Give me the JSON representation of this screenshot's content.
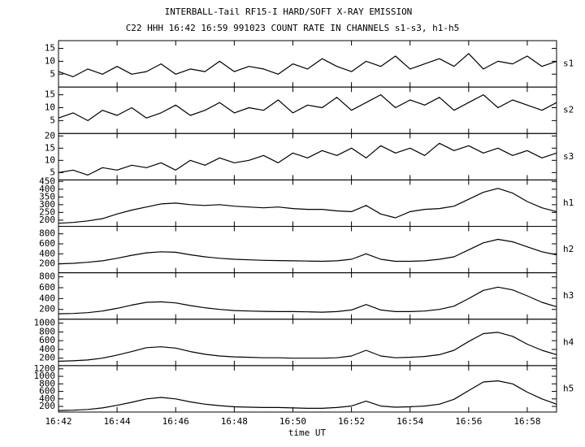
{
  "chart_data": {
    "type": "line",
    "title": "INTERBALL-Tail RF15-I HARD/SOFT X-RAY EMISSION",
    "subtitle": "C22 HHH 16:42 16:59 991023  COUNT RATE IN CHANNELS s1-s3, h1-h5",
    "xlabel": "time UT",
    "color": "#000000",
    "xlim": [
      "16:42",
      "16:59"
    ],
    "xticks": [
      "16:42",
      "16:44",
      "16:46",
      "16:48",
      "16:50",
      "16:52",
      "16:54",
      "16:56",
      "16:58"
    ],
    "x": [
      "16:42:00",
      "16:42:30",
      "16:43:00",
      "16:43:30",
      "16:44:00",
      "16:44:30",
      "16:45:00",
      "16:45:30",
      "16:46:00",
      "16:46:30",
      "16:47:00",
      "16:47:30",
      "16:48:00",
      "16:48:30",
      "16:49:00",
      "16:49:30",
      "16:50:00",
      "16:50:30",
      "16:51:00",
      "16:51:30",
      "16:52:00",
      "16:52:30",
      "16:53:00",
      "16:53:30",
      "16:54:00",
      "16:54:30",
      "16:55:00",
      "16:55:30",
      "16:56:00",
      "16:56:30",
      "16:57:00",
      "16:57:30",
      "16:58:00",
      "16:58:30",
      "16:59:00"
    ],
    "panels": [
      {
        "name": "s1",
        "ylim": [
          0,
          18
        ],
        "yticks": [
          5,
          10,
          15
        ],
        "values": [
          6,
          4,
          7,
          5,
          8,
          5,
          6,
          9,
          5,
          7,
          6,
          10,
          6,
          8,
          7,
          5,
          9,
          7,
          11,
          8,
          6,
          10,
          8,
          12,
          7,
          9,
          11,
          8,
          13,
          7,
          10,
          9,
          12,
          8,
          10
        ]
      },
      {
        "name": "s2",
        "ylim": [
          0,
          18
        ],
        "yticks": [
          5,
          10,
          15
        ],
        "values": [
          6,
          8,
          5,
          9,
          7,
          10,
          6,
          8,
          11,
          7,
          9,
          12,
          8,
          10,
          9,
          13,
          8,
          11,
          10,
          14,
          9,
          12,
          15,
          10,
          13,
          11,
          14,
          9,
          12,
          15,
          10,
          13,
          11,
          9,
          12
        ]
      },
      {
        "name": "s3",
        "ylim": [
          2,
          21
        ],
        "yticks": [
          5,
          10,
          15,
          20
        ],
        "values": [
          5,
          6,
          4,
          7,
          6,
          8,
          7,
          9,
          6,
          10,
          8,
          11,
          9,
          10,
          12,
          9,
          13,
          11,
          14,
          12,
          15,
          11,
          16,
          13,
          15,
          12,
          17,
          14,
          16,
          13,
          15,
          12,
          14,
          11,
          13
        ]
      },
      {
        "name": "h1",
        "ylim": [
          160,
          460
        ],
        "yticks": [
          200,
          250,
          300,
          350,
          400,
          450
        ],
        "values": [
          180,
          185,
          195,
          210,
          240,
          265,
          285,
          305,
          310,
          300,
          295,
          300,
          290,
          285,
          280,
          285,
          275,
          270,
          270,
          260,
          255,
          295,
          240,
          215,
          255,
          270,
          275,
          290,
          335,
          380,
          405,
          375,
          320,
          280,
          255
        ]
      },
      {
        "name": "h2",
        "ylim": [
          20,
          950
        ],
        "yticks": [
          200,
          400,
          600,
          800
        ],
        "values": [
          200,
          210,
          230,
          260,
          310,
          370,
          420,
          440,
          430,
          380,
          340,
          310,
          290,
          280,
          270,
          265,
          260,
          255,
          250,
          260,
          290,
          400,
          290,
          250,
          250,
          260,
          290,
          340,
          480,
          620,
          690,
          640,
          540,
          440,
          380
        ]
      },
      {
        "name": "h3",
        "ylim": [
          20,
          875
        ],
        "yticks": [
          200,
          400,
          600,
          800
        ],
        "values": [
          120,
          125,
          140,
          170,
          220,
          280,
          330,
          340,
          320,
          270,
          230,
          200,
          180,
          170,
          165,
          160,
          160,
          155,
          150,
          160,
          190,
          290,
          190,
          160,
          160,
          170,
          200,
          260,
          400,
          550,
          610,
          560,
          450,
          330,
          250
        ]
      },
      {
        "name": "h4",
        "ylim": [
          30,
          1090
        ],
        "yticks": [
          200,
          400,
          600,
          800,
          1000
        ],
        "values": [
          130,
          140,
          160,
          200,
          270,
          350,
          440,
          460,
          430,
          350,
          290,
          250,
          230,
          220,
          210,
          210,
          200,
          200,
          200,
          210,
          250,
          380,
          250,
          210,
          220,
          240,
          280,
          380,
          580,
          760,
          790,
          700,
          520,
          380,
          280
        ]
      },
      {
        "name": "h5",
        "ylim": [
          50,
          1285
        ],
        "yticks": [
          200,
          400,
          600,
          800,
          1000,
          1200
        ],
        "values": [
          90,
          100,
          120,
          160,
          230,
          310,
          400,
          440,
          400,
          320,
          260,
          220,
          190,
          180,
          170,
          170,
          160,
          150,
          150,
          170,
          210,
          340,
          210,
          180,
          190,
          210,
          260,
          390,
          620,
          850,
          880,
          800,
          580,
          400,
          260
        ]
      }
    ]
  }
}
